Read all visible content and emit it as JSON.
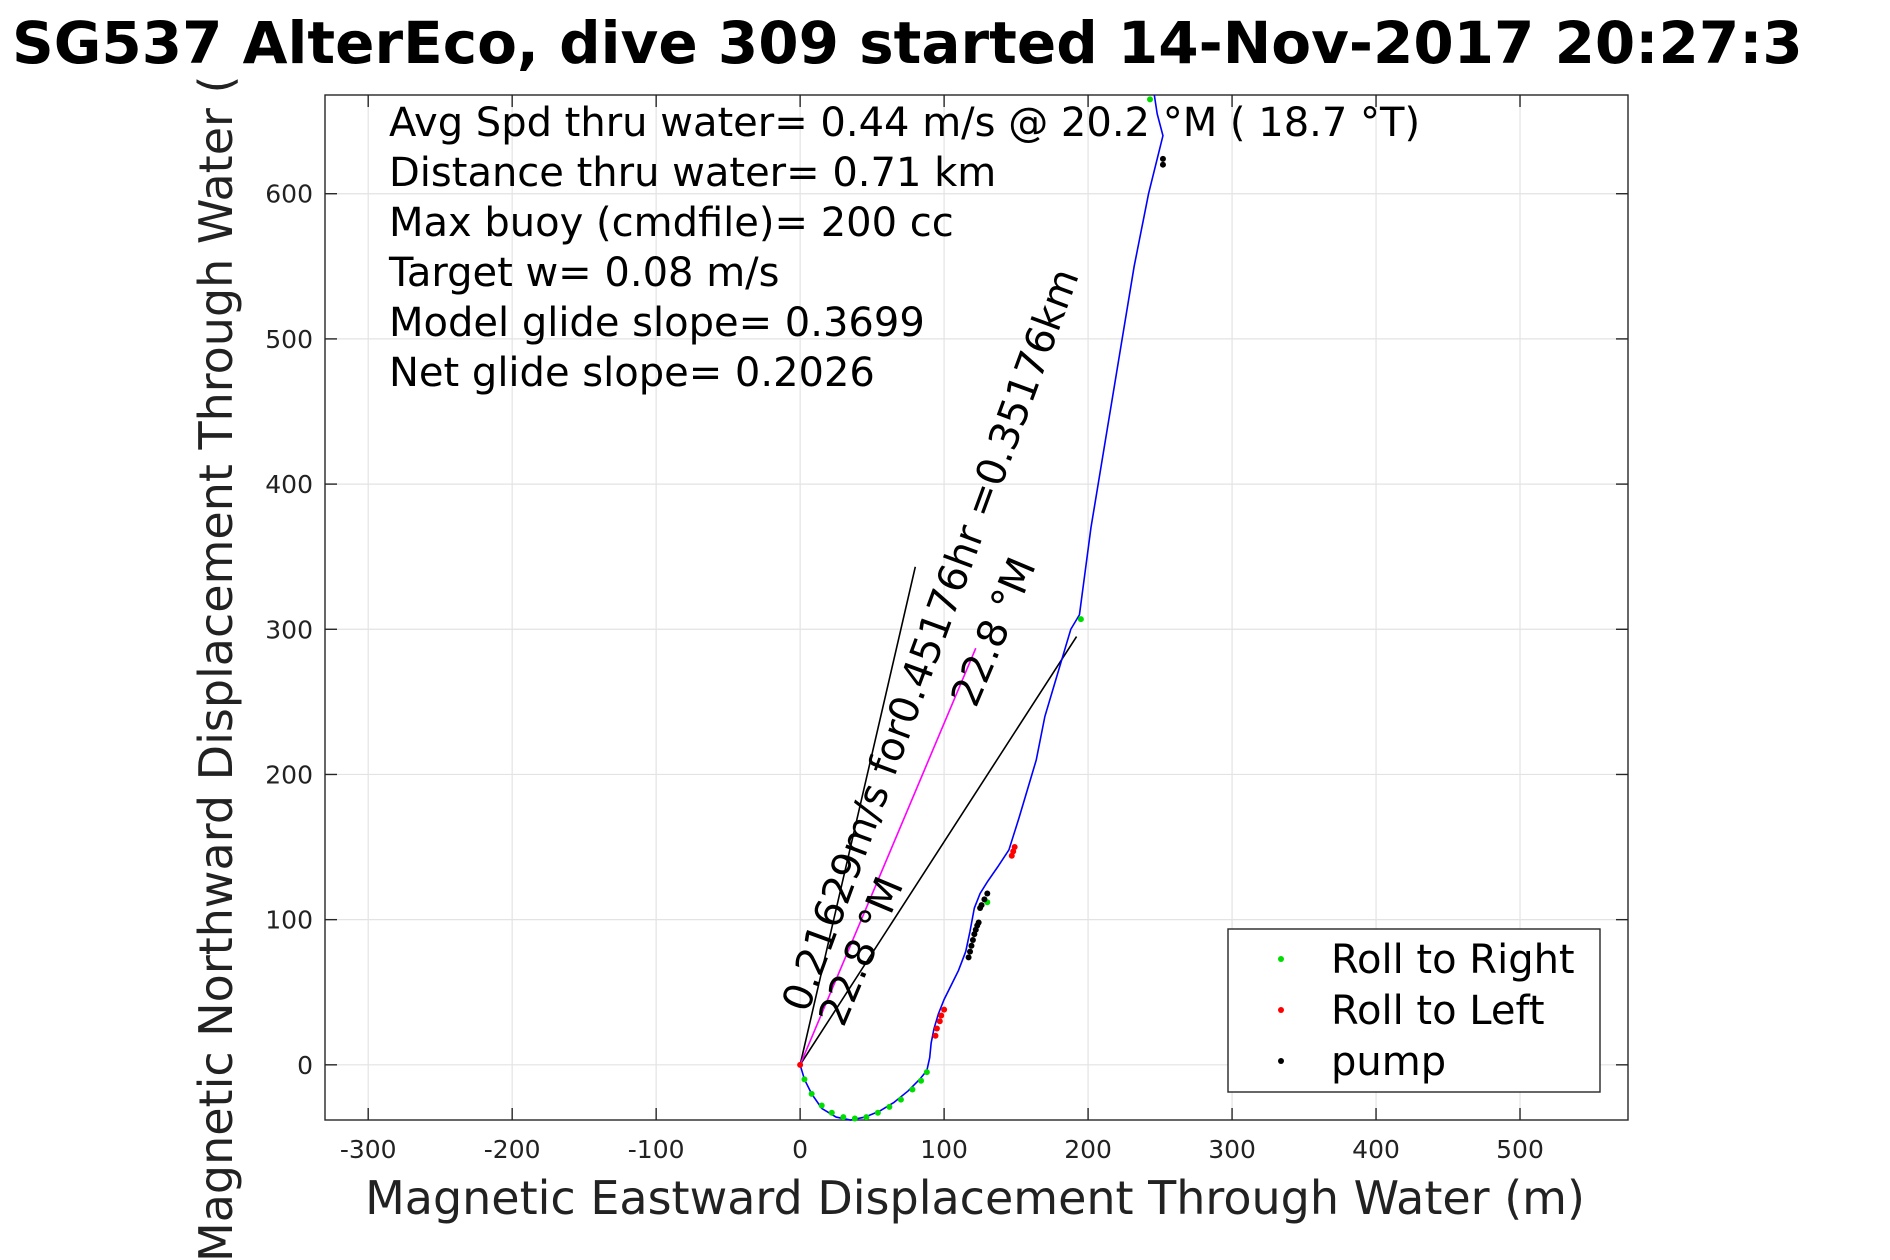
{
  "title": "SG537 AlterEco, dive 309 started 14-Nov-2017 20:27:3",
  "chart_data": {
    "type": "line",
    "xlabel": "Magnetic Eastward Displacement Through Water (m)",
    "ylabel": "Magnetic Northward Displacement Through Water (",
    "xlim": [
      -330,
      575
    ],
    "ylim": [
      -38,
      668
    ],
    "xticks": [
      -300,
      -200,
      -100,
      0,
      100,
      200,
      300,
      400,
      500
    ],
    "yticks": [
      0,
      100,
      200,
      300,
      400,
      500,
      600
    ],
    "grid": true,
    "legend_position": "bottom-right",
    "stats": [
      "Avg Spd thru water=  0.44 m/s @  20.2 °M ( 18.7 °T)",
      "Distance thru water=  0.71 km",
      "Max buoy (cmdfile)= 200 cc",
      "Target w= 0.08 m/s",
      "Model glide slope= 0.3699",
      "Net glide slope= 0.2026"
    ],
    "annotations": [
      {
        "text": "0.21629m/s for0.45176hr =0.35176km",
        "x": 5,
        "y": 35,
        "angle_deg": 20.2
      },
      {
        "text": "22.8 °M",
        "x": 30,
        "y": 25,
        "angle_deg": 22.8
      },
      {
        "text": "22.8 °M",
        "x": 122,
        "y": 245,
        "angle_deg": 22.8
      }
    ],
    "series": [
      {
        "name": "track",
        "color": "#0000ff",
        "x": [
          0,
          3,
          8,
          15,
          25,
          35,
          45,
          55,
          65,
          75,
          83,
          88,
          90,
          91,
          93,
          96,
          100,
          105,
          110,
          115,
          118,
          121,
          125,
          130,
          137,
          145,
          152,
          158,
          164,
          170,
          176,
          182,
          188,
          194,
          198,
          202,
          207,
          212,
          217,
          222,
          227,
          232,
          237,
          242,
          247,
          252,
          248,
          246
        ],
        "y": [
          0,
          -10,
          -20,
          -30,
          -36,
          -38,
          -36,
          -32,
          -26,
          -18,
          -10,
          -4,
          5,
          15,
          25,
          35,
          45,
          55,
          65,
          78,
          92,
          108,
          118,
          126,
          136,
          148,
          170,
          190,
          210,
          240,
          260,
          280,
          300,
          310,
          340,
          370,
          400,
          430,
          460,
          490,
          520,
          550,
          575,
          600,
          620,
          640,
          655,
          668
        ]
      }
    ],
    "reference_lines": [
      {
        "color": "#000000",
        "x": [
          0,
          80
        ],
        "y": [
          0,
          343
        ]
      },
      {
        "color": "#000000",
        "x": [
          0,
          192
        ],
        "y": [
          0,
          295
        ]
      },
      {
        "color": "#ff00ff",
        "x": [
          0,
          122
        ],
        "y": [
          0,
          287
        ]
      }
    ],
    "legend": [
      {
        "label": "Roll to Right",
        "color": "#00dd00"
      },
      {
        "label": "Roll to Left",
        "color": "#ff0000"
      },
      {
        "label": "pump",
        "color": "#000000"
      }
    ],
    "markers": {
      "roll_right": {
        "color": "#00dd00",
        "x": [
          3,
          8,
          15,
          22,
          30,
          38,
          46,
          54,
          62,
          70,
          78,
          84,
          88,
          130,
          195,
          243
        ],
        "y": [
          -10,
          -20,
          -28,
          -33,
          -36,
          -37,
          -36,
          -33,
          -29,
          -24,
          -17,
          -11,
          -5,
          112,
          307,
          665
        ]
      },
      "roll_left": {
        "color": "#ff0000",
        "x": [
          0,
          94,
          95,
          97,
          98,
          100,
          147,
          148,
          149
        ],
        "y": [
          0,
          20,
          25,
          30,
          34,
          38,
          144,
          147,
          150
        ]
      },
      "pump": {
        "color": "#000000",
        "x": [
          117,
          118,
          119,
          120,
          121,
          122,
          123,
          124,
          125,
          126,
          128,
          130,
          252,
          252
        ],
        "y": [
          74,
          78,
          82,
          86,
          90,
          93,
          96,
          98,
          108,
          110,
          114,
          118,
          620,
          624
        ]
      }
    }
  }
}
